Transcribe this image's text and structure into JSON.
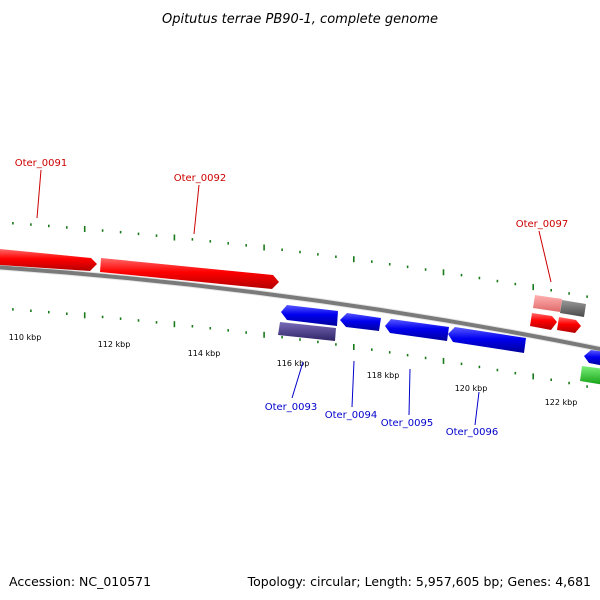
{
  "title": "Opitutus terrae PB90-1, complete genome",
  "footer": {
    "accession": "Accession: NC_010571",
    "summary": "Topology: circular; Length: 5,957,605 bp; Genes: 4,681"
  },
  "colors": {
    "backbone": "#777777",
    "forward_gene": "#ff0000",
    "reverse_gene": "#0000ee",
    "forward_label": "#cc0000",
    "reverse_label": "#0000cc",
    "tick": "#1a7a1a",
    "pseudo_forward": "#f08080",
    "gray_gene": "#666666",
    "purple_gene": "#4b3b8b",
    "green_gene": "#22cc22"
  },
  "tick_labels": [
    "110 kbp",
    "112 kbp",
    "114 kbp",
    "116 kbp",
    "118 kbp",
    "120 kbp",
    "122 kbp"
  ],
  "gene_labels": {
    "forward": [
      "Oter_0091",
      "Oter_0092",
      "Oter_0097"
    ],
    "reverse": [
      "Oter_0093",
      "Oter_0094",
      "Oter_0095",
      "Oter_0096"
    ]
  }
}
